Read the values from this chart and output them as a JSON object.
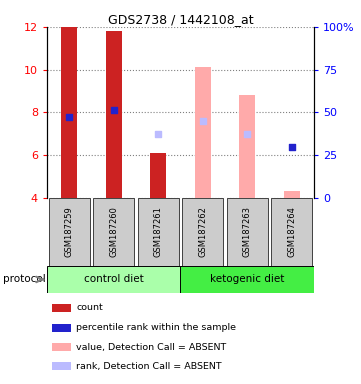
{
  "title": "GDS2738 / 1442108_at",
  "samples": [
    "GSM187259",
    "GSM187260",
    "GSM187261",
    "GSM187262",
    "GSM187263",
    "GSM187264"
  ],
  "group_control": {
    "name": "control diet",
    "indices": [
      0,
      1,
      2
    ],
    "color_light": "#ccffcc",
    "color_dark": "#55ee55"
  },
  "group_keto": {
    "name": "ketogenic diet",
    "indices": [
      3,
      4,
      5
    ],
    "color_light": "#ccffcc",
    "color_dark": "#33dd33"
  },
  "ylim_left": [
    4,
    12
  ],
  "ylim_right": [
    0,
    100
  ],
  "yticks_left": [
    4,
    6,
    8,
    10,
    12
  ],
  "yticks_right": [
    0,
    25,
    50,
    75,
    100
  ],
  "ytick_labels_right": [
    "0",
    "25",
    "50",
    "75",
    "100%"
  ],
  "bar_present": [
    true,
    true,
    true,
    false,
    false,
    false
  ],
  "bar_values": [
    12.0,
    11.8,
    6.1,
    10.1,
    8.8,
    4.3
  ],
  "bar_color_present": "#cc2222",
  "bar_color_absent": "#ffaaaa",
  "rank_values": [
    7.8,
    8.1,
    7.0,
    7.6,
    7.0,
    6.4
  ],
  "rank_present": [
    true,
    true,
    false,
    false,
    false,
    true
  ],
  "rank_color_present": "#2222cc",
  "rank_color_absent": "#bbbbff",
  "bar_bottom": 4.0,
  "bar_width": 0.35,
  "protocol_label": "protocol",
  "control_group_color": "#aaffaa",
  "keto_group_color": "#44ee44",
  "sample_cell_color": "#cccccc",
  "legend_items": [
    {
      "color": "#cc2222",
      "label": "count"
    },
    {
      "color": "#2222cc",
      "label": "percentile rank within the sample"
    },
    {
      "color": "#ffaaaa",
      "label": "value, Detection Call = ABSENT"
    },
    {
      "color": "#bbbbff",
      "label": "rank, Detection Call = ABSENT"
    }
  ]
}
